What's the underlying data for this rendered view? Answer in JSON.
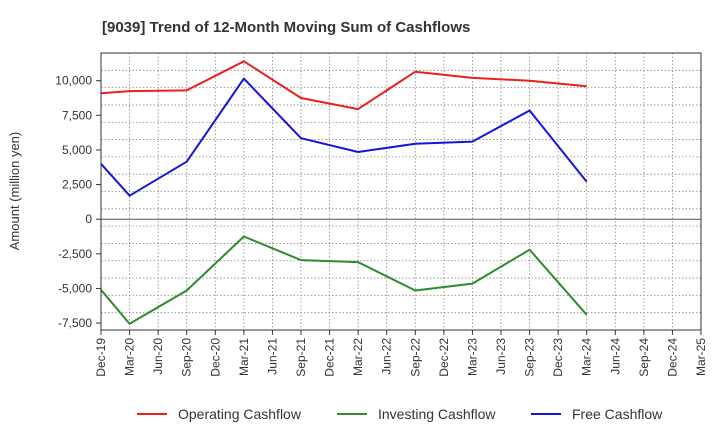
{
  "chart_data": {
    "type": "line",
    "title": "[9039]  Trend of 12-Month Moving Sum of Cashflows",
    "xlabel": "",
    "ylabel": "Amount (million yen)",
    "categories": [
      "Dec-19",
      "Mar-20",
      "Jun-20",
      "Sep-20",
      "Dec-20",
      "Mar-21",
      "Jun-21",
      "Sep-21",
      "Dec-21",
      "Mar-22",
      "Jun-22",
      "Sep-22",
      "Dec-22",
      "Mar-23",
      "Jun-23",
      "Sep-23",
      "Dec-23",
      "Mar-24",
      "Jun-24",
      "Sep-24",
      "Dec-24",
      "Mar-25"
    ],
    "ylim": [
      -8000,
      12000
    ],
    "yticks": [
      10000,
      7500,
      5000,
      2500,
      0,
      -2500,
      -5000,
      -7500
    ],
    "ytick_labels": [
      "10,000",
      "7,500",
      "5,000",
      "2,500",
      "0",
      "-2,500",
      "-5,000",
      "-7,500"
    ],
    "grid": true,
    "legend_position": "bottom",
    "series": [
      {
        "name": "Operating Cashflow",
        "color": "#e8211b",
        "x": [
          "Dec-19",
          "Mar-20",
          "Sep-20",
          "Mar-21",
          "Sep-21",
          "Mar-22",
          "Sep-22",
          "Mar-23",
          "Sep-23",
          "Mar-24"
        ],
        "values": [
          9100,
          9250,
          9300,
          11400,
          8750,
          7950,
          10650,
          10200,
          10000,
          9600
        ]
      },
      {
        "name": "Investing Cashflow",
        "color": "#2e8b2e",
        "x": [
          "Dec-19",
          "Mar-20",
          "Sep-20",
          "Mar-21",
          "Sep-21",
          "Mar-22",
          "Sep-22",
          "Mar-23",
          "Sep-23",
          "Mar-24"
        ],
        "values": [
          -5100,
          -7550,
          -5150,
          -1250,
          -2950,
          -3100,
          -5150,
          -4650,
          -2200,
          -6900
        ]
      },
      {
        "name": "Free Cashflow",
        "color": "#1515d8",
        "x": [
          "Dec-19",
          "Mar-20",
          "Sep-20",
          "Mar-21",
          "Sep-21",
          "Mar-22",
          "Sep-22",
          "Mar-23",
          "Sep-23",
          "Mar-24"
        ],
        "values": [
          4000,
          1700,
          4150,
          10150,
          5850,
          4850,
          5450,
          5600,
          7850,
          2700
        ]
      }
    ]
  }
}
